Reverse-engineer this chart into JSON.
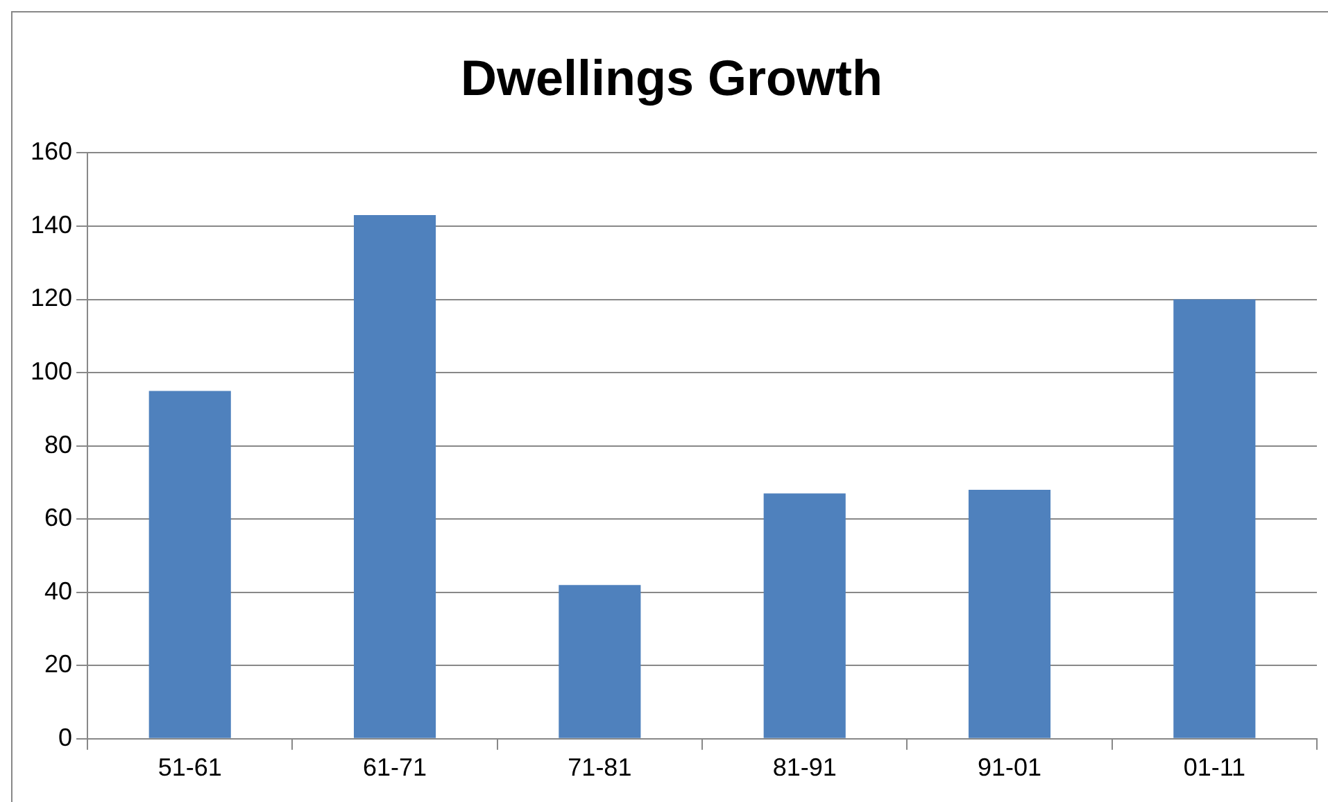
{
  "chart_data": {
    "type": "bar",
    "title": "Dwellings Growth",
    "categories": [
      "51-61",
      "61-71",
      "71-81",
      "81-91",
      "91-01",
      "01-11"
    ],
    "values": [
      95,
      143,
      42,
      67,
      68,
      120
    ],
    "color": "#4f81bd",
    "ylim": [
      0,
      160
    ],
    "yticks": [
      0,
      20,
      40,
      60,
      80,
      100,
      120,
      140,
      160
    ],
    "grid": "y"
  }
}
